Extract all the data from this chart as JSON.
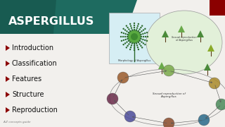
{
  "title": "ASPERGILLUS",
  "title_color": "#ffffff",
  "banner_color": "#1e6b60",
  "banner_color_dark": "#144d44",
  "bg_color": "#f2f0ed",
  "bullet_color": "#8b0000",
  "text_color": "#111111",
  "bullets": [
    "Introduction",
    "Classification",
    "Features",
    "Structure",
    "Reproduction"
  ],
  "footer_text": "A Z concepts guide",
  "footer_color": "#777777",
  "red_box_color": "#8b0000",
  "diagram_bg": "#d6eef4",
  "diagram_border": "#aaaaaa",
  "cycle_bg": "#eaf5e0",
  "cycle_border": "#888888"
}
